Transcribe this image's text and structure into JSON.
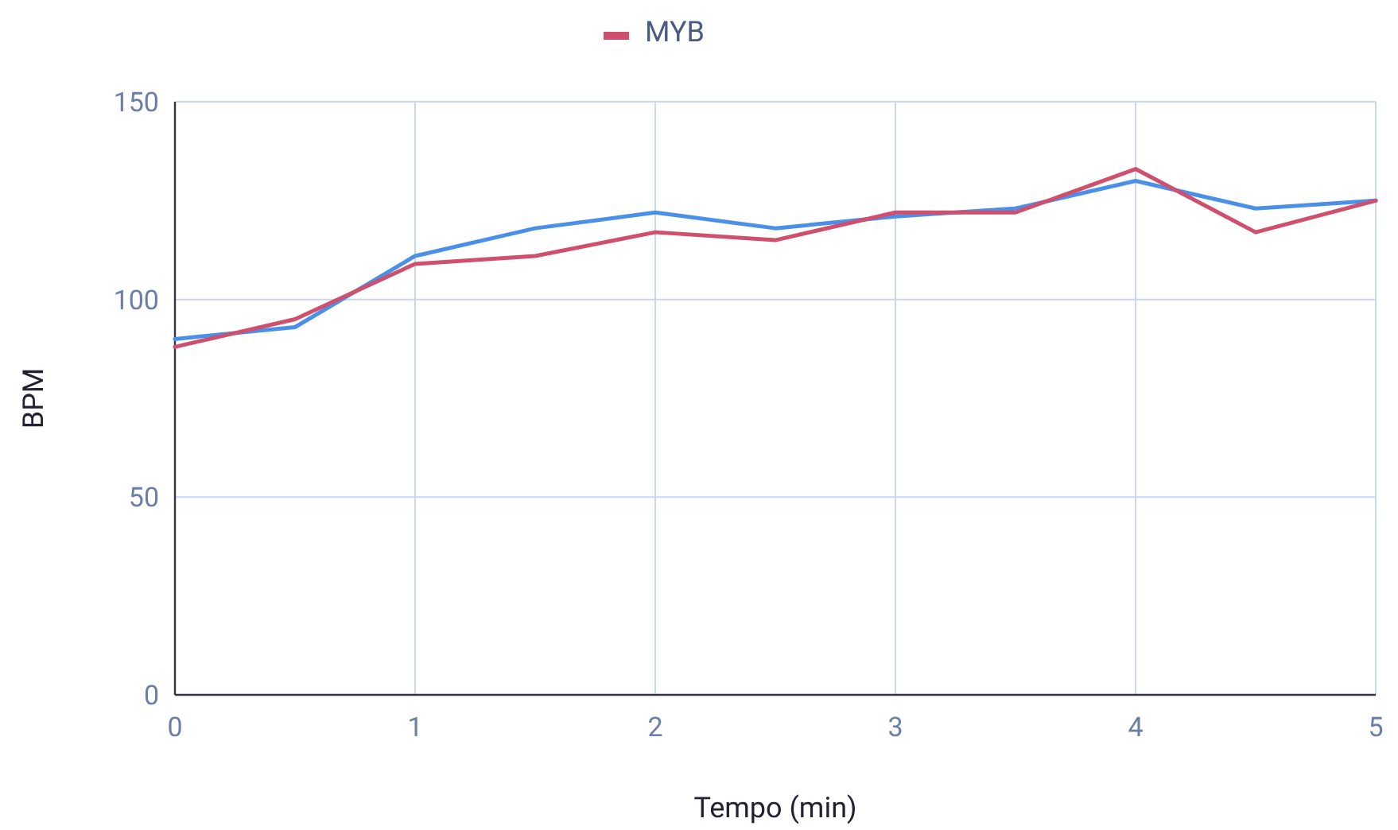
{
  "chart_data": {
    "type": "line",
    "xlabel": "Tempo (min)",
    "ylabel": "BPM",
    "x": [
      0,
      0.5,
      1,
      1.5,
      2,
      2.5,
      3,
      3.5,
      4,
      4.5,
      5
    ],
    "series": [
      {
        "color": "#4a90e8",
        "values": [
          90,
          93,
          111,
          118,
          122,
          118,
          121,
          123,
          130,
          123,
          125
        ]
      },
      {
        "name": "MYB",
        "color": "#cf4f6c",
        "values": [
          88,
          95,
          109,
          111,
          117,
          115,
          122,
          122,
          133,
          117,
          125
        ]
      }
    ],
    "xlim": [
      0,
      5
    ],
    "xticks": [
      0,
      1,
      2,
      3,
      4,
      5
    ],
    "ylim": [
      0,
      150
    ],
    "yticks": [
      0,
      50,
      100,
      150
    ],
    "grid": true,
    "legend": "top",
    "line_style": "solid"
  }
}
